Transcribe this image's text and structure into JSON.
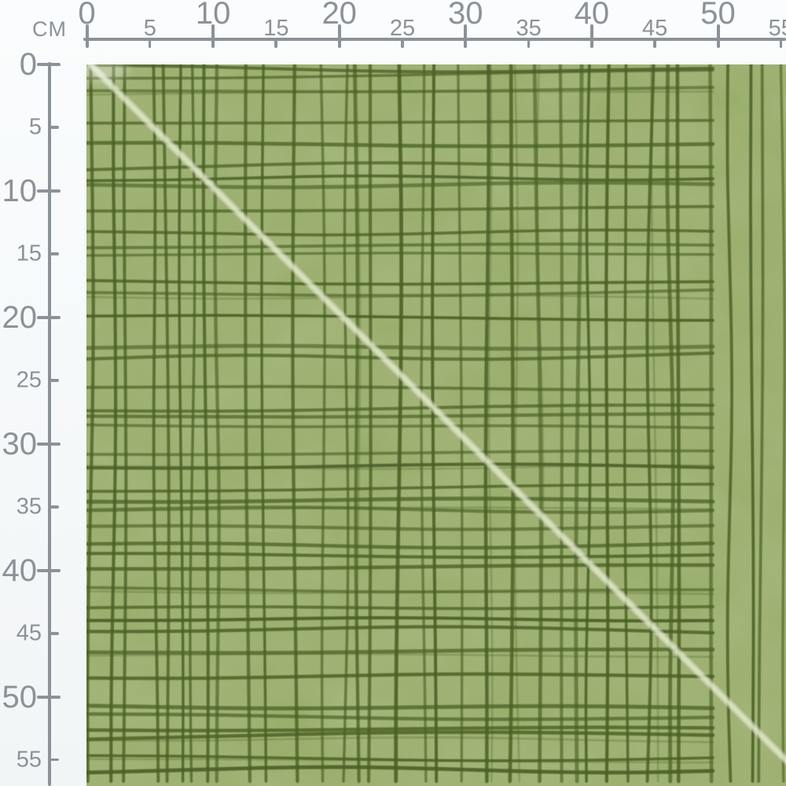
{
  "ruler": {
    "unit_label": "CM",
    "top_tick_labels": [
      "0",
      "5",
      "10",
      "15",
      "20",
      "25",
      "30",
      "35",
      "40",
      "45",
      "50",
      "55"
    ],
    "left_tick_labels": [
      "0",
      "5",
      "10",
      "15",
      "20",
      "25",
      "30",
      "35",
      "40",
      "45",
      "50",
      "55"
    ]
  },
  "colors": {
    "page_background": "#f7f9fa",
    "ruler_line": "#8b9298",
    "ruler_text": "#8b9298",
    "fabric_base": "#90a65e",
    "fabric_grid_line": "#42591c",
    "diagonal_stripe": "#e2e8cc"
  }
}
